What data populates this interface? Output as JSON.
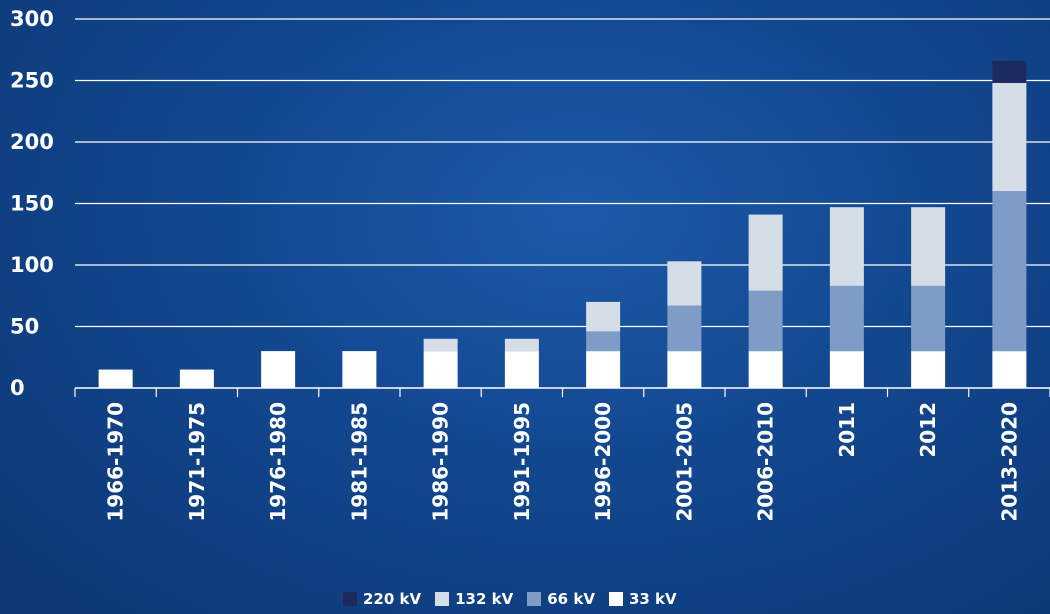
{
  "chart_data": {
    "type": "bar",
    "stacked": true,
    "categories": [
      "1966-1970",
      "1971-1975",
      "1976-1980",
      "1981-1985",
      "1986-1990",
      "1991-1995",
      "1996-2000",
      "2001-2005",
      "2006-2010",
      "2011",
      "2012",
      "2013-2020"
    ],
    "series": [
      {
        "name": "33 kV",
        "color": "#ffffff",
        "values": [
          15,
          15,
          30,
          30,
          30,
          30,
          30,
          30,
          30,
          30,
          30,
          30
        ]
      },
      {
        "name": "66 kV",
        "color": "#7f9cc6",
        "values": [
          0,
          0,
          0,
          0,
          0,
          0,
          16,
          37,
          49,
          53,
          53,
          130
        ]
      },
      {
        "name": "132 kV",
        "color": "#d5dee6",
        "values": [
          0,
          0,
          0,
          0,
          10,
          10,
          24,
          36,
          62,
          64,
          64,
          88
        ]
      },
      {
        "name": "220 kV",
        "color": "#1c2a5e",
        "values": [
          0,
          0,
          0,
          0,
          0,
          0,
          0,
          0,
          0,
          0,
          0,
          18
        ]
      }
    ],
    "ylim": [
      0,
      300
    ],
    "yticks": [
      0,
      50,
      100,
      150,
      200,
      250,
      300
    ],
    "grid": true,
    "legend": "bottom",
    "legend_order": [
      "220 kV",
      "132 kV",
      "66 kV",
      "33 kV"
    ],
    "title": "",
    "xlabel": "",
    "ylabel": ""
  }
}
